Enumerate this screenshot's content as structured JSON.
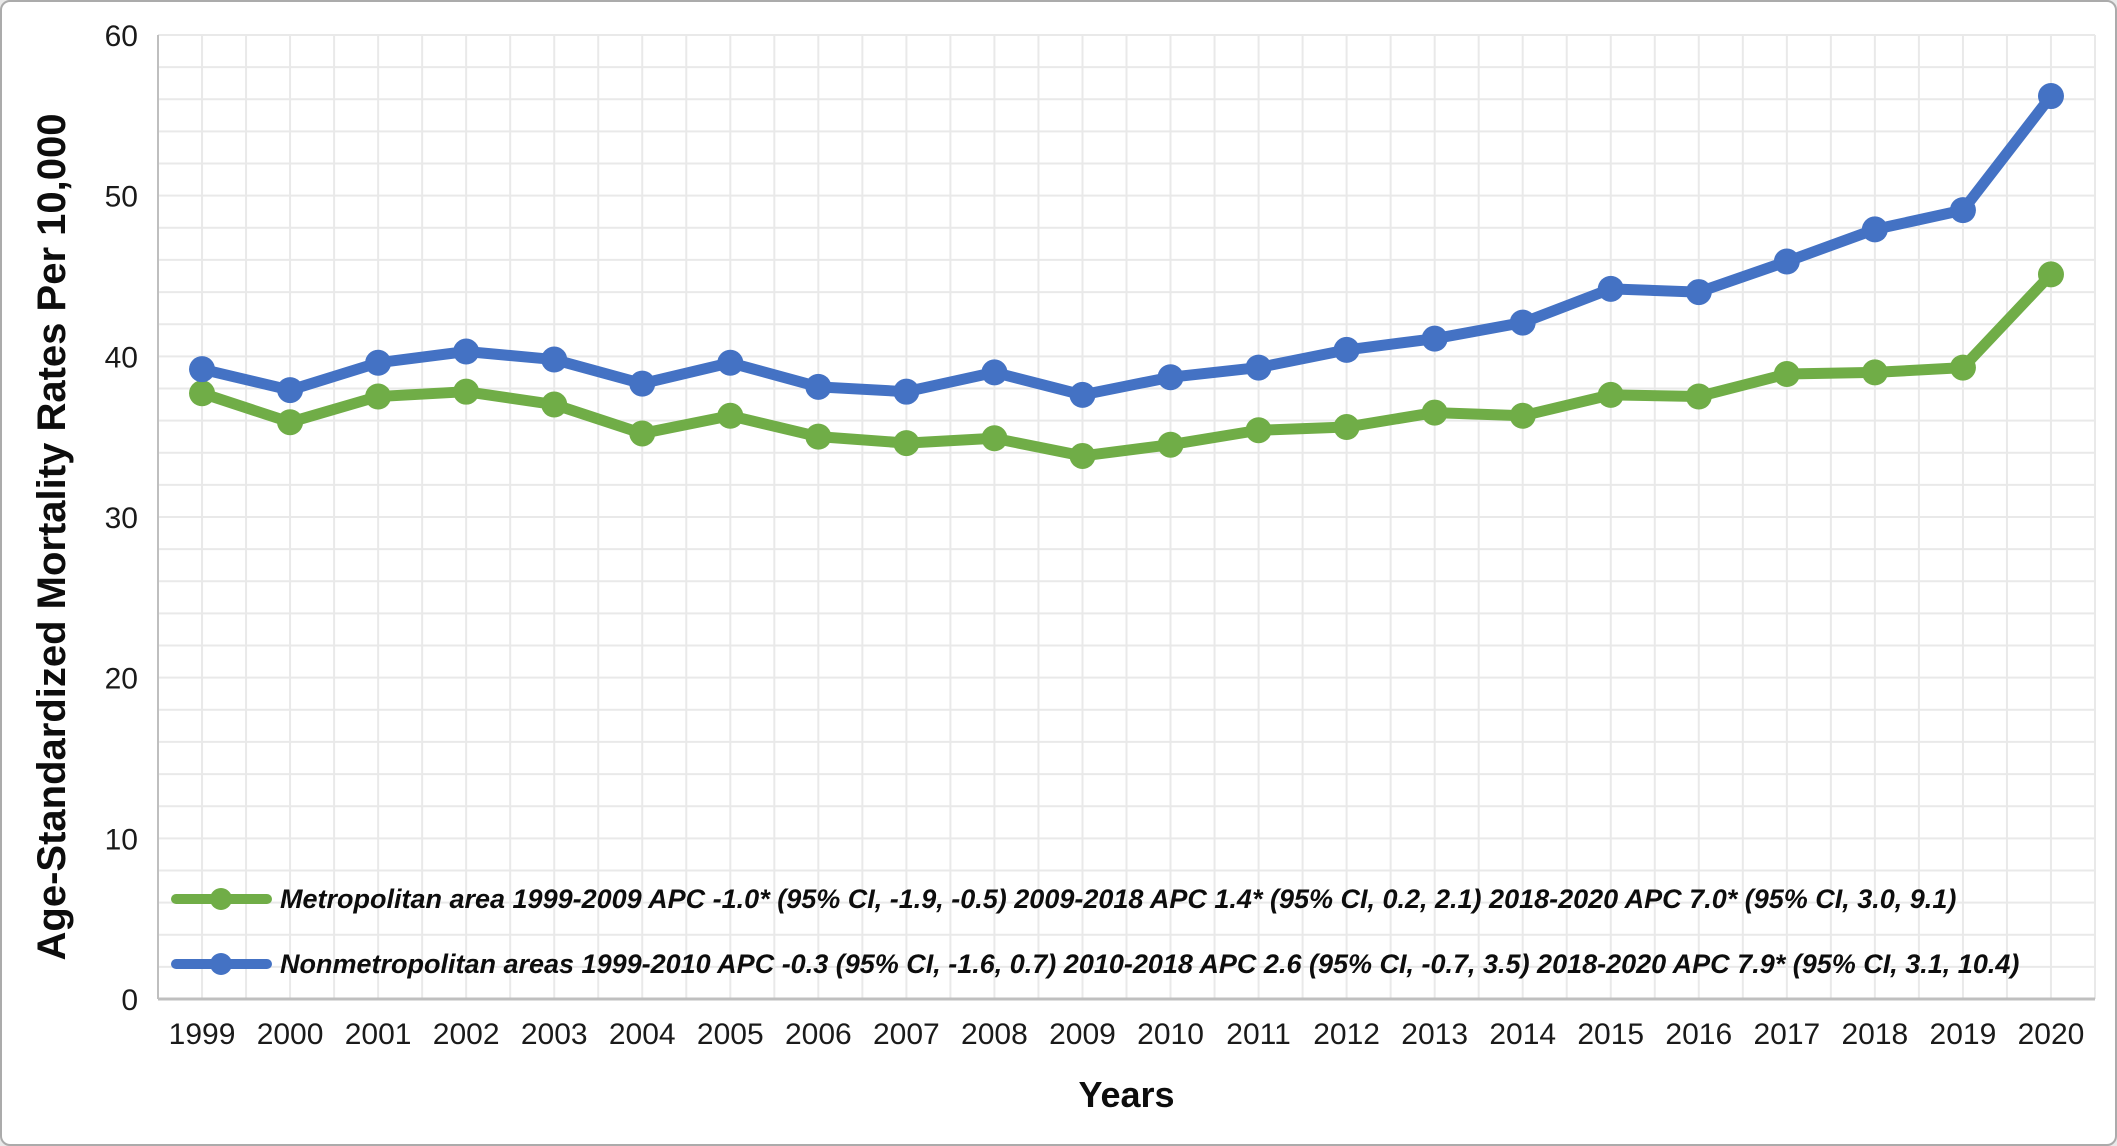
{
  "figure": {
    "y_axis_title": "Age-Standardized Mortality Rates Per 10,000",
    "x_axis_title": "Years"
  },
  "chart_data": {
    "type": "line",
    "title": "",
    "xlabel": "Years",
    "ylabel": "Age-Standardized Mortality Rates Per 10,000",
    "x": [
      1999,
      2000,
      2001,
      2002,
      2003,
      2004,
      2005,
      2006,
      2007,
      2008,
      2009,
      2010,
      2011,
      2012,
      2013,
      2014,
      2015,
      2016,
      2017,
      2018,
      2019,
      2020
    ],
    "series": [
      {
        "name": "Metropolitan area",
        "color": "#70AD47",
        "legend_label": "Metropolitan area 1999-2009 APC -1.0* (95% CI, -1.9, -0.5) 2009-2018 APC 1.4* (95% CI, 0.2, 2.1) 2018-2020 APC 7.0* (95% CI, 3.0, 9.1)",
        "values": [
          37.7,
          35.9,
          37.5,
          37.8,
          37.0,
          35.2,
          36.3,
          35.0,
          34.6,
          34.9,
          33.8,
          34.5,
          35.4,
          35.6,
          36.5,
          36.3,
          37.6,
          37.5,
          38.9,
          39.0,
          39.3,
          45.1
        ]
      },
      {
        "name": "Nonmetropolitan areas",
        "color": "#4472C4",
        "legend_label": "Nonmetropolitan areas 1999-2010 APC -0.3 (95% CI, -1.6, 0.7) 2010-2018 APC 2.6 (95% CI, -0.7, 3.5) 2018-2020 APC 7.9* (95% CI, 3.1, 10.4)",
        "values": [
          39.2,
          37.9,
          39.6,
          40.3,
          39.8,
          38.3,
          39.6,
          38.1,
          37.8,
          39.0,
          37.6,
          38.7,
          39.3,
          40.4,
          41.1,
          42.1,
          44.2,
          44.0,
          45.9,
          47.9,
          49.1,
          56.2
        ]
      }
    ],
    "ylim": [
      0,
      60
    ],
    "y_tick_step": 10,
    "y_minor_step": 2,
    "grid": true,
    "legend_position": "inside-bottom-left"
  },
  "style_colors": {
    "gridline": "#e9e9e9",
    "axis_line": "#bfbfbf",
    "tick_label": "#1a1a1a"
  }
}
